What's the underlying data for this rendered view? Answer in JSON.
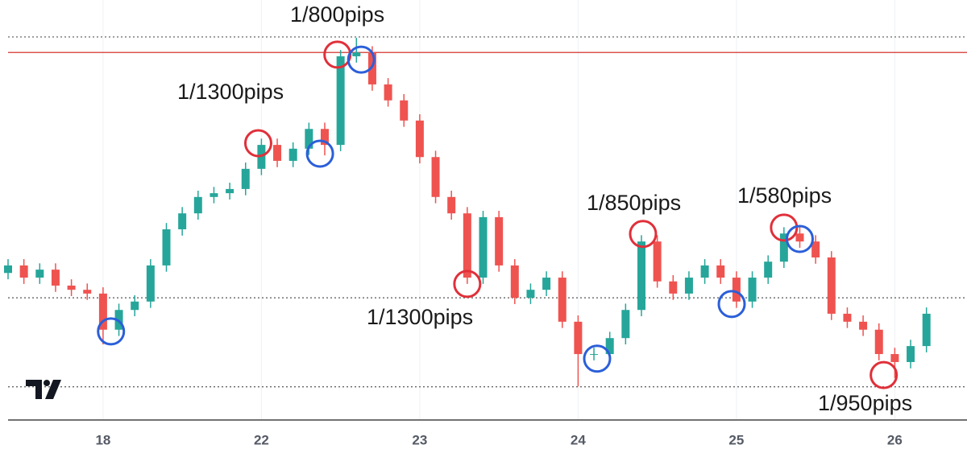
{
  "chart_data": {
    "type": "candlestick",
    "x": [
      -0.6,
      -0.5,
      -0.4,
      -0.3,
      -0.2,
      -0.1,
      0.0,
      0.1,
      0.2,
      0.3,
      0.4,
      0.5,
      0.6,
      0.7,
      0.8,
      0.9,
      1.0,
      1.1,
      1.2,
      1.3,
      1.4,
      1.5,
      1.6,
      1.7,
      1.8,
      1.9,
      2.0,
      2.1,
      2.2,
      2.3,
      2.4,
      2.5,
      2.6,
      2.7,
      2.8,
      2.9,
      3.0,
      3.1,
      3.2,
      3.3,
      3.4,
      3.5,
      3.6,
      3.7,
      3.8,
      3.9,
      4.0,
      4.1,
      4.2,
      4.3,
      4.4,
      4.5,
      4.6,
      4.7,
      4.8,
      4.9,
      5.0,
      5.1,
      5.2
    ],
    "open": [
      35.0,
      36.8,
      33.9,
      35.8,
      32.0,
      31.0,
      30.1,
      21.5,
      26.2,
      28.2,
      36.8,
      45.4,
      49.2,
      53.1,
      54.0,
      55.0,
      59.8,
      65.5,
      61.7,
      64.6,
      69.3,
      65.5,
      86.6,
      87.5,
      79.9,
      76.1,
      71.3,
      62.6,
      53.1,
      49.2,
      33.9,
      48.3,
      36.8,
      29.1,
      31.0,
      33.9,
      23.4,
      15.7,
      15.7,
      19.5,
      26.2,
      42.5,
      33.0,
      30.1,
      33.9,
      36.8,
      33.9,
      28.2,
      33.9,
      37.7,
      44.4,
      42.5,
      38.7,
      25.3,
      23.4,
      21.5,
      15.7,
      13.8,
      17.6
    ],
    "high": [
      38.3,
      38.3,
      37.3,
      37.3,
      33.5,
      32.5,
      31.6,
      27.7,
      29.7,
      38.3,
      46.9,
      50.7,
      54.6,
      55.5,
      56.5,
      61.3,
      67.0,
      67.0,
      66.1,
      70.8,
      70.8,
      88.1,
      91.0,
      89.0,
      81.4,
      77.6,
      72.8,
      64.1,
      54.6,
      50.7,
      49.8,
      49.8,
      38.3,
      32.5,
      35.4,
      35.4,
      24.9,
      17.2,
      21.0,
      27.7,
      44.0,
      44.0,
      34.5,
      35.4,
      38.3,
      38.3,
      35.4,
      35.4,
      39.2,
      45.9,
      45.9,
      44.0,
      40.2,
      26.8,
      24.9,
      23.0,
      17.2,
      19.1,
      26.8
    ],
    "low": [
      33.5,
      32.4,
      32.4,
      30.5,
      29.5,
      28.6,
      18.0,
      20.0,
      24.7,
      26.7,
      35.3,
      43.9,
      47.7,
      51.6,
      52.5,
      53.5,
      58.3,
      60.2,
      60.2,
      63.1,
      63.0,
      64.0,
      85.1,
      78.4,
      74.6,
      69.8,
      61.1,
      51.6,
      47.7,
      32.4,
      32.4,
      35.3,
      27.6,
      27.6,
      29.5,
      21.9,
      8.0,
      14.2,
      14.2,
      18.0,
      24.7,
      31.5,
      28.6,
      28.6,
      32.4,
      32.4,
      26.7,
      26.7,
      32.4,
      36.2,
      41.0,
      37.2,
      23.8,
      21.9,
      20.0,
      14.2,
      10.0,
      12.3,
      16.1
    ],
    "close": [
      36.8,
      33.9,
      35.8,
      32.0,
      31.0,
      30.1,
      21.5,
      26.2,
      28.2,
      36.8,
      45.4,
      49.2,
      53.1,
      54.0,
      55.0,
      59.8,
      65.5,
      61.7,
      64.6,
      69.3,
      65.5,
      86.6,
      87.5,
      79.9,
      76.1,
      71.3,
      62.6,
      53.1,
      49.2,
      33.9,
      48.3,
      36.8,
      29.1,
      31.0,
      33.9,
      23.4,
      15.7,
      15.7,
      19.5,
      26.2,
      42.5,
      33.0,
      30.1,
      33.9,
      36.8,
      33.9,
      28.2,
      33.9,
      37.7,
      44.4,
      42.5,
      38.7,
      25.3,
      23.4,
      21.5,
      15.7,
      13.8,
      17.6,
      25.3
    ],
    "up_color": "#26a69a",
    "down_color": "#ef5350",
    "xlim": [
      -0.6,
      5.456
    ],
    "ylim": [
      0,
      100
    ],
    "xticks": [
      {
        "value": 0,
        "label": "18"
      },
      {
        "value": 1,
        "label": "22"
      },
      {
        "value": 2,
        "label": "23"
      },
      {
        "value": 3,
        "label": "24"
      },
      {
        "value": 4,
        "label": "25"
      },
      {
        "value": 5,
        "label": "26"
      }
    ],
    "grid": true,
    "horizontal_line": {
      "value": 87.5,
      "color": "#d9534f"
    },
    "dotted_lines": [
      91.2,
      29.1,
      7.9
    ],
    "markers": [
      {
        "x": 0.98,
        "y": 65.9,
        "color": "#e0303a"
      },
      {
        "x": 1.37,
        "y": 63.4,
        "color": "#2b5fd9"
      },
      {
        "x": 1.48,
        "y": 87.0,
        "color": "#e0303a"
      },
      {
        "x": 1.63,
        "y": 85.8,
        "color": "#2b5fd9"
      },
      {
        "x": 0.05,
        "y": 21.1,
        "color": "#2b5fd9"
      },
      {
        "x": 2.3,
        "y": 32.4,
        "color": "#e0303a"
      },
      {
        "x": 3.12,
        "y": 14.6,
        "color": "#2b5fd9"
      },
      {
        "x": 3.41,
        "y": 44.3,
        "color": "#e0303a"
      },
      {
        "x": 3.97,
        "y": 27.6,
        "color": "#2b5fd9"
      },
      {
        "x": 4.3,
        "y": 45.8,
        "color": "#e0303a"
      },
      {
        "x": 4.4,
        "y": 43.1,
        "color": "#2b5fd9"
      },
      {
        "x": 4.93,
        "y": 10.7,
        "color": "#e0303a"
      }
    ],
    "annotations": [
      "1/800pips",
      "1/1300pips",
      "1/1300pips",
      "1/850pips",
      "1/580pips",
      "1/950pips"
    ]
  }
}
